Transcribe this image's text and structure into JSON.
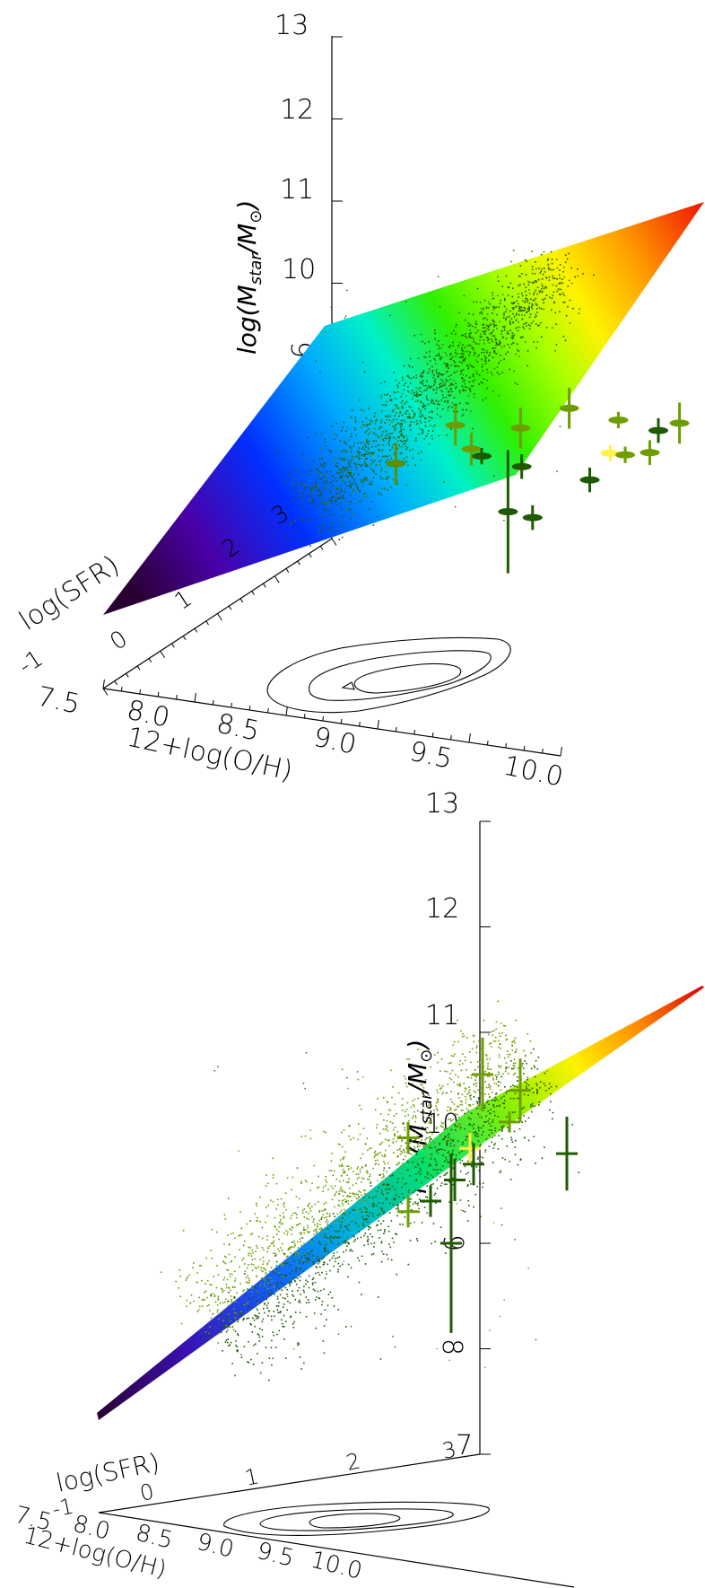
{
  "chart_data": [
    {
      "type": "scatter",
      "view": "oblique",
      "title": "",
      "xlabel": "12+log(O/H)",
      "ylabel": "log(SFR)",
      "zlabel": "log(M_star/M_⊙)",
      "x_ticks": [
        "7.5",
        "8.0",
        "8.5",
        "9.0",
        "9.5",
        "10.0"
      ],
      "y_ticks": [
        "-1",
        "0",
        "1",
        "2",
        "3"
      ],
      "z_ticks": [
        "7",
        "8",
        "9",
        "10",
        "11",
        "12",
        "13"
      ],
      "xlim": [
        7.5,
        10.0
      ],
      "ylim": [
        -1,
        3
      ],
      "zlim": [
        7,
        13
      ],
      "surface": {
        "kind": "plane",
        "colormap": "rainbow",
        "corner_mass_values": [
          7.2,
          8.9,
          11.1,
          9.6
        ]
      },
      "cloud": {
        "color": "#1f5a00",
        "description_center": {
          "oh": 9.1,
          "sfr": 0.6,
          "mass": 9.6
        }
      },
      "points": [
        {
          "oh": 8.1,
          "sfr": 2.2,
          "mass": 9.35,
          "err": 0.25,
          "color": "#5e8e00"
        },
        {
          "oh": 8.3,
          "sfr": 2.6,
          "mass": 9.7,
          "err": 0.25,
          "color": "#6e9d00"
        },
        {
          "oh": 8.45,
          "sfr": 2.4,
          "mass": 9.55,
          "err": 0.2,
          "color": "#6e9d00"
        },
        {
          "oh": 8.6,
          "sfr": 2.1,
          "mass": 9.65,
          "err": 0.1,
          "color": "#1f5a00"
        },
        {
          "oh": 8.75,
          "sfr": 2.3,
          "mass": 9.95,
          "err": 0.25,
          "color": "#6e9d00"
        },
        {
          "oh": 8.85,
          "sfr": 2.0,
          "mass": 9.65,
          "err": 0.15,
          "color": "#1f5a00"
        },
        {
          "oh": 8.9,
          "sfr": 1.6,
          "mass": 9.3,
          "err": 0.75,
          "color": "#1f5a00"
        },
        {
          "oh": 9.0,
          "sfr": 2.35,
          "mass": 10.25,
          "err": 0.25,
          "color": "#6e9d00"
        },
        {
          "oh": 9.05,
          "sfr": 1.55,
          "mass": 9.3,
          "err": 0.15,
          "color": "#1f5a00"
        },
        {
          "oh": 9.3,
          "sfr": 1.75,
          "mass": 9.75,
          "err": 0.15,
          "color": "#1f5a00"
        },
        {
          "oh": 9.35,
          "sfr": 1.95,
          "mass": 10.0,
          "err": 0.1,
          "color": "#fff24a"
        },
        {
          "oh": 9.3,
          "sfr": 2.25,
          "mass": 10.25,
          "err": 0.1,
          "color": "#6e9d00"
        },
        {
          "oh": 9.4,
          "sfr": 2.05,
          "mass": 9.95,
          "err": 0.1,
          "color": "#6e9d00"
        },
        {
          "oh": 9.55,
          "sfr": 2.15,
          "mass": 10.25,
          "err": 0.15,
          "color": "#1f5a00"
        },
        {
          "oh": 9.55,
          "sfr": 2.0,
          "mass": 10.05,
          "err": 0.15,
          "color": "#6e9d00"
        },
        {
          "oh": 9.65,
          "sfr": 2.2,
          "mass": 10.35,
          "err": 0.25,
          "color": "#6e9d00"
        }
      ],
      "contours": 3
    },
    {
      "type": "scatter",
      "view": "edge-on",
      "title": "",
      "xlabel": "12+log(O/H)",
      "ylabel": "log(SFR)",
      "zlabel": "log(M_star/M_⊙)",
      "x_ticks": [
        "7.5",
        "8.0",
        "8.5",
        "9.0",
        "9.5",
        "10.0"
      ],
      "y_ticks": [
        "-1",
        "0",
        "1",
        "2",
        "3"
      ],
      "z_ticks": [
        "7",
        "8",
        "9",
        "10",
        "11",
        "12",
        "13"
      ],
      "xlim": [
        7.5,
        10.0
      ],
      "ylim": [
        -1,
        3
      ],
      "zlim": [
        7,
        13
      ],
      "surface": {
        "kind": "plane-edge-on",
        "colormap": "rainbow"
      },
      "cloud": {
        "color_above": "#6e9d00",
        "color_below": "#1f5a00"
      },
      "points": [
        {
          "mass": 10.0,
          "err": 0.15,
          "color": "#6e9d00"
        },
        {
          "mass": 10.6,
          "err": 0.35,
          "color": "#6e9d00"
        },
        {
          "mass": 10.45,
          "err": 0.3,
          "color": "#6e9d00"
        },
        {
          "mass": 10.15,
          "err": 0.1,
          "color": "#6e9d00"
        },
        {
          "mass": 9.9,
          "err": 0.15,
          "color": "#fff24a"
        },
        {
          "mass": 9.75,
          "err": 0.2,
          "color": "#1f5a00"
        },
        {
          "mass": 9.6,
          "err": 0.2,
          "color": "#1f5a00"
        },
        {
          "mass": 9.4,
          "err": 0.15,
          "color": "#1f5a00"
        },
        {
          "mass": 9.3,
          "err": 0.15,
          "color": "#6e9d00"
        },
        {
          "mass": 9.0,
          "err": 0.85,
          "color": "#1f5a00"
        },
        {
          "mass": 9.85,
          "err": 0.35,
          "color": "#1f5a00"
        }
      ],
      "contours": 3
    }
  ]
}
